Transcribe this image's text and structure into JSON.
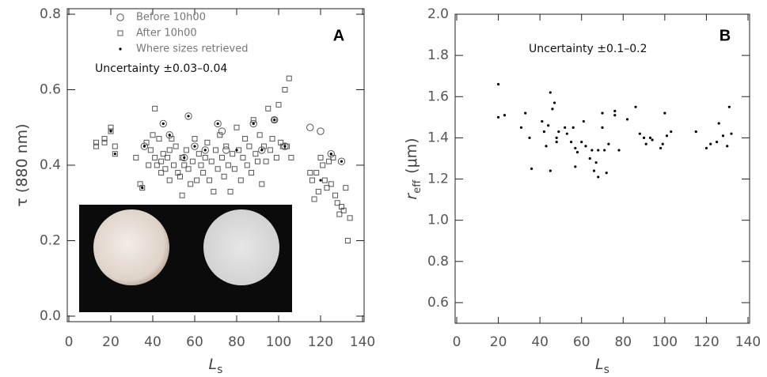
{
  "chart_data": [
    {
      "type": "scatter",
      "panel_label": "A",
      "ylabel": "τ (880 nm)",
      "xlabel": "L",
      "xlabel_sub": "s",
      "annotation": "Uncertainty ±0.03–0.04",
      "xlim": [
        0,
        140
      ],
      "xticks": [
        0,
        20,
        40,
        60,
        80,
        100,
        120,
        140
      ],
      "ylim": [
        0,
        0.8
      ],
      "yticks": [
        {
          "value": 0,
          "label": "0.0"
        },
        0.2,
        0.4,
        0.6,
        0.8
      ],
      "legend": "top-left",
      "series": [
        {
          "name": "Before 10h00",
          "marker": "circle",
          "color": "#555555",
          "x": [
            36,
            45,
            48,
            55,
            57,
            60,
            65,
            71,
            73,
            75,
            88,
            92,
            98,
            103,
            115,
            120,
            125,
            130
          ],
          "values": [
            0.45,
            0.51,
            0.48,
            0.42,
            0.53,
            0.45,
            0.44,
            0.51,
            0.49,
            0.44,
            0.51,
            0.44,
            0.52,
            0.45,
            0.5,
            0.49,
            0.43,
            0.41
          ]
        },
        {
          "name": "After 10h00",
          "marker": "square",
          "color": "#555555",
          "x": [
            13,
            13,
            17,
            17,
            20,
            20,
            22,
            22,
            32,
            34,
            35,
            37,
            38,
            39,
            40,
            41,
            41,
            42,
            43,
            44,
            44,
            45,
            46,
            47,
            48,
            48,
            49,
            50,
            51,
            52,
            53,
            54,
            54,
            55,
            56,
            57,
            58,
            59,
            60,
            61,
            62,
            63,
            64,
            65,
            66,
            67,
            68,
            69,
            70,
            71,
            72,
            73,
            74,
            75,
            76,
            77,
            78,
            79,
            80,
            81,
            82,
            83,
            84,
            85,
            86,
            87,
            88,
            89,
            90,
            91,
            92,
            93,
            94,
            95,
            96,
            97,
            98,
            99,
            100,
            101,
            102,
            103,
            104,
            105,
            106,
            115,
            116,
            117,
            118,
            119,
            120,
            121,
            122,
            123,
            124,
            125,
            126,
            127,
            128,
            129,
            130,
            131,
            132,
            133,
            134
          ],
          "values": [
            0.45,
            0.46,
            0.46,
            0.47,
            0.49,
            0.5,
            0.45,
            0.43,
            0.42,
            0.35,
            0.34,
            0.46,
            0.4,
            0.44,
            0.48,
            0.55,
            0.42,
            0.4,
            0.47,
            0.41,
            0.38,
            0.43,
            0.39,
            0.42,
            0.36,
            0.44,
            0.47,
            0.4,
            0.45,
            0.38,
            0.37,
            0.42,
            0.32,
            0.4,
            0.44,
            0.39,
            0.35,
            0.41,
            0.47,
            0.36,
            0.43,
            0.4,
            0.38,
            0.42,
            0.46,
            0.36,
            0.41,
            0.33,
            0.44,
            0.39,
            0.48,
            0.42,
            0.37,
            0.45,
            0.4,
            0.33,
            0.43,
            0.39,
            0.5,
            0.44,
            0.36,
            0.42,
            0.47,
            0.4,
            0.45,
            0.38,
            0.52,
            0.43,
            0.41,
            0.48,
            0.35,
            0.45,
            0.41,
            0.55,
            0.44,
            0.47,
            0.52,
            0.42,
            0.56,
            0.46,
            0.45,
            0.6,
            0.45,
            0.63,
            0.42,
            0.38,
            0.36,
            0.31,
            0.38,
            0.33,
            0.42,
            0.4,
            0.36,
            0.34,
            0.41,
            0.35,
            0.42,
            0.32,
            0.3,
            0.27,
            0.29,
            0.28,
            0.34,
            0.2,
            0.26
          ]
        },
        {
          "name": "Where sizes retrieved",
          "marker": "dot",
          "color": "#000000",
          "x": [
            20,
            22,
            35,
            36,
            45,
            48,
            55,
            57,
            60,
            65,
            71,
            80,
            88,
            92,
            98,
            103,
            120,
            125,
            130
          ],
          "values": [
            0.49,
            0.43,
            0.34,
            0.45,
            0.51,
            0.48,
            0.42,
            0.53,
            0.45,
            0.44,
            0.51,
            0.44,
            0.51,
            0.44,
            0.52,
            0.45,
            0.36,
            0.43,
            0.41
          ]
        }
      ]
    },
    {
      "type": "scatter",
      "panel_label": "B",
      "ylabel": "r",
      "ylabel_sub": "eff",
      "ylabel_rest": "(μm)",
      "xlabel": "L",
      "xlabel_sub": "s",
      "annotation": "Uncertainty ±0.1–0.2",
      "xlim": [
        0,
        140
      ],
      "xticks": [
        0,
        20,
        40,
        60,
        80,
        100,
        120,
        140
      ],
      "ylim": [
        0.5,
        2.0
      ],
      "yticks": [
        0.6,
        0.8,
        {
          "value": 1,
          "label": "1.0"
        },
        1.2,
        1.4,
        1.6,
        1.8,
        {
          "value": 2,
          "label": "2.0"
        }
      ],
      "series": [
        {
          "marker": "dot",
          "color": "#000000",
          "x": [
            20,
            20,
            23,
            31,
            33,
            35,
            36,
            41,
            42,
            43,
            44,
            45,
            45,
            46,
            47,
            48,
            48,
            49,
            52,
            53,
            55,
            56,
            57,
            57,
            58,
            60,
            61,
            62,
            64,
            65,
            66,
            67,
            68,
            68,
            70,
            70,
            71,
            72,
            73,
            76,
            76,
            78,
            82,
            86,
            88,
            90,
            91,
            93,
            94,
            98,
            99,
            100,
            101,
            103,
            115,
            120,
            122,
            125,
            126,
            128,
            130,
            131,
            132
          ],
          "values": [
            1.66,
            1.5,
            1.51,
            1.45,
            1.52,
            1.4,
            1.25,
            1.48,
            1.43,
            1.36,
            1.46,
            1.24,
            1.62,
            1.54,
            1.57,
            1.4,
            1.38,
            1.43,
            1.45,
            1.42,
            1.38,
            1.45,
            1.26,
            1.35,
            1.33,
            1.38,
            1.48,
            1.36,
            1.3,
            1.34,
            1.24,
            1.28,
            1.34,
            1.21,
            1.52,
            1.45,
            1.34,
            1.23,
            1.37,
            1.53,
            1.51,
            1.34,
            1.49,
            1.55,
            1.42,
            1.4,
            1.37,
            1.4,
            1.39,
            1.35,
            1.37,
            1.52,
            1.41,
            1.43,
            1.43,
            1.35,
            1.37,
            1.38,
            1.47,
            1.41,
            1.36,
            1.55,
            1.42
          ]
        }
      ]
    }
  ]
}
